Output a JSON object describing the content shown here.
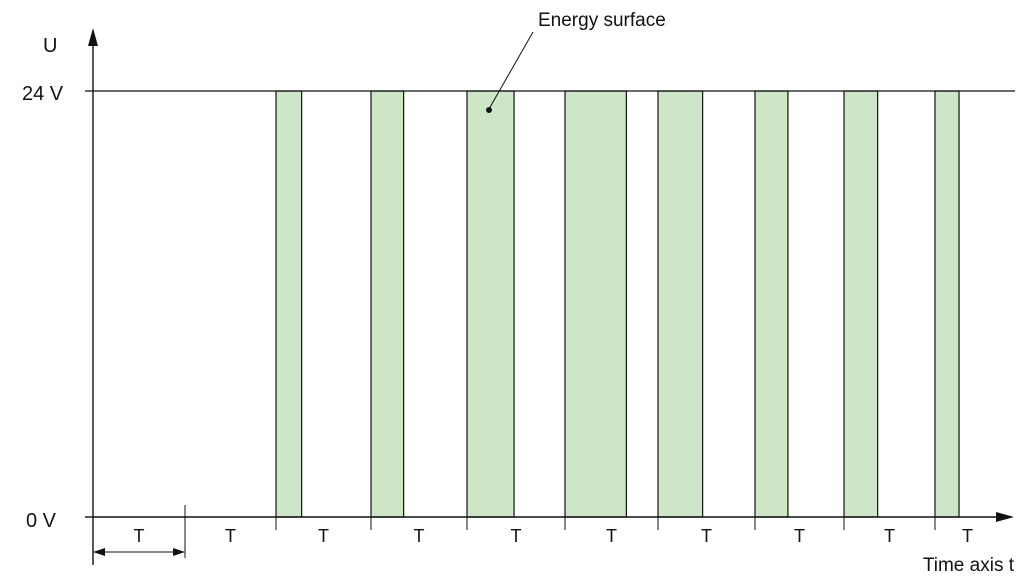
{
  "diagram": {
    "y_axis_label": "U",
    "y_level_high": "24 V",
    "y_level_low": "0 V",
    "x_axis_label": "Time axis t",
    "annotation": "Energy surface",
    "period_label": "T",
    "period_count": 10,
    "pulse_color": "#cde6c8",
    "line_color": "#111111",
    "pulses": [
      {
        "period": 3,
        "duty": 0.27
      },
      {
        "period": 4,
        "duty": 0.34
      },
      {
        "period": 5,
        "duty": 0.48
      },
      {
        "period": 6,
        "duty": 0.66
      },
      {
        "period": 7,
        "duty": 0.46
      },
      {
        "period": 8,
        "duty": 0.37
      },
      {
        "period": 9,
        "duty": 0.37
      },
      {
        "period": 10,
        "duty": 0.37
      }
    ]
  }
}
